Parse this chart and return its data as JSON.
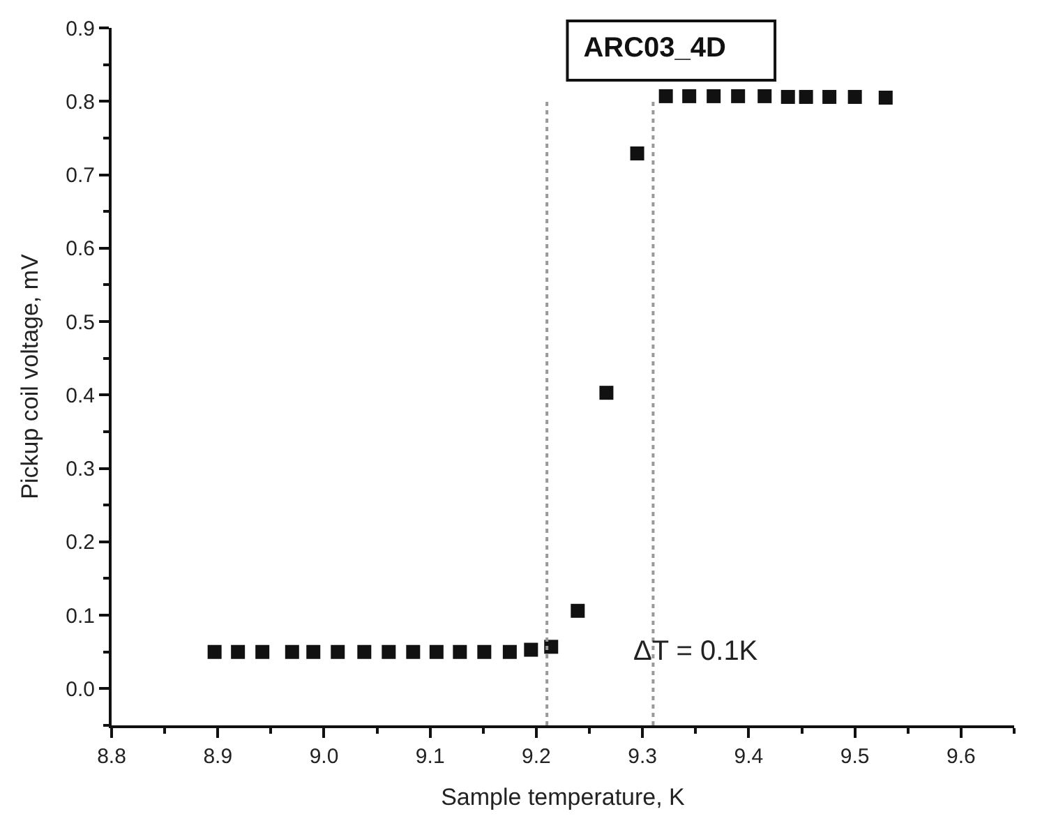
{
  "chart_data": {
    "type": "scatter",
    "title": "ARC03_4D",
    "xlabel": "Sample temperature, K",
    "ylabel": "Pickup coil voltage, mV",
    "x": [
      8.897,
      8.919,
      8.942,
      8.97,
      8.99,
      9.013,
      9.038,
      9.061,
      9.084,
      9.106,
      9.128,
      9.151,
      9.175,
      9.195,
      9.214,
      9.239,
      9.266,
      9.295,
      9.322,
      9.344,
      9.367,
      9.39,
      9.415,
      9.437,
      9.454,
      9.476,
      9.5,
      9.529
    ],
    "series": [
      {
        "color": "#111111",
        "values": [
          0.05,
          0.05,
          0.05,
          0.05,
          0.05,
          0.05,
          0.05,
          0.05,
          0.05,
          0.05,
          0.05,
          0.05,
          0.05,
          0.053,
          0.057,
          0.106,
          0.403,
          0.729,
          0.807,
          0.807,
          0.807,
          0.807,
          0.807,
          0.806,
          0.806,
          0.806,
          0.806,
          0.805
        ]
      }
    ],
    "xlim": [
      8.8,
      9.65
    ],
    "xticks": [
      8.8,
      8.9,
      {
        "value": 9.0,
        "label": "9.0"
      },
      9.1,
      9.2,
      9.3,
      9.4,
      9.5,
      9.6
    ],
    "ylim": [
      -0.05,
      0.9
    ],
    "yticks": [
      {
        "value": 0.0,
        "label": "0.0"
      },
      0.1,
      0.2,
      0.3,
      0.4,
      0.5,
      0.6,
      0.7,
      0.8,
      0.9
    ],
    "ref_lines": [
      {
        "axis": "x",
        "value": 9.21,
        "color": "#999999",
        "line_style": "dotted"
      },
      {
        "axis": "x",
        "value": 9.31,
        "color": "#999999",
        "line_style": "dotted"
      }
    ],
    "annotations": [
      "ΔT = 0.1K"
    ],
    "marker": "square"
  }
}
